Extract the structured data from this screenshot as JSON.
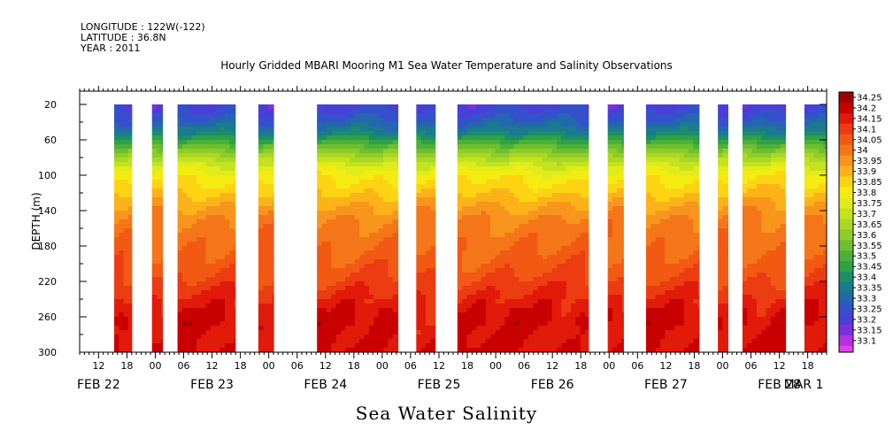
{
  "header": {
    "longitude": "LONGITUDE : 122W(-122)",
    "latitude": "LATITUDE : 36.8N",
    "year": "YEAR : 2011"
  },
  "chart_data": {
    "type": "heatmap",
    "title": "Hourly Gridded MBARI Mooring M1 Sea Water Temperature and Salinity Observations",
    "xlabel": "Sea Water Salinity",
    "ylabel": "DEPTH (m)",
    "x_units": "hours since 2011-02-22 00:00",
    "xlim": [
      8,
      166
    ],
    "ylim": [
      300,
      5
    ],
    "y_ticks": [
      20,
      60,
      100,
      140,
      180,
      220,
      260,
      300
    ],
    "x_hour_ticks": [
      {
        "h": 12,
        "label": "12"
      },
      {
        "h": 18,
        "label": "18"
      },
      {
        "h": 24,
        "label": "00"
      },
      {
        "h": 30,
        "label": "06"
      },
      {
        "h": 36,
        "label": "12"
      },
      {
        "h": 42,
        "label": "18"
      },
      {
        "h": 48,
        "label": "00"
      },
      {
        "h": 54,
        "label": "06"
      },
      {
        "h": 60,
        "label": "12"
      },
      {
        "h": 66,
        "label": "18"
      },
      {
        "h": 72,
        "label": "00"
      },
      {
        "h": 78,
        "label": "06"
      },
      {
        "h": 84,
        "label": "12"
      },
      {
        "h": 90,
        "label": "18"
      },
      {
        "h": 96,
        "label": "00"
      },
      {
        "h": 102,
        "label": "06"
      },
      {
        "h": 108,
        "label": "12"
      },
      {
        "h": 114,
        "label": "18"
      },
      {
        "h": 120,
        "label": "00"
      },
      {
        "h": 126,
        "label": "06"
      },
      {
        "h": 132,
        "label": "12"
      },
      {
        "h": 138,
        "label": "18"
      },
      {
        "h": 144,
        "label": "00"
      },
      {
        "h": 150,
        "label": "06"
      },
      {
        "h": 156,
        "label": "12"
      },
      {
        "h": 162,
        "label": "18"
      }
    ],
    "date_labels": [
      {
        "h": 12,
        "label": "FEB 22"
      },
      {
        "h": 36,
        "label": "FEB 23"
      },
      {
        "h": 60,
        "label": "FEB 24"
      },
      {
        "h": 84,
        "label": "FEB 25"
      },
      {
        "h": 108,
        "label": "FEB 26"
      },
      {
        "h": 132,
        "label": "FEB 27"
      },
      {
        "h": 156,
        "label": "FEB 28"
      },
      {
        "h": 172,
        "label": "MAR  1"
      }
    ],
    "data_segments": [
      {
        "start": 15.3,
        "end": 19.0
      },
      {
        "start": 23.3,
        "end": 25.5
      },
      {
        "start": 28.7,
        "end": 40.9
      },
      {
        "start": 45.8,
        "end": 49.0
      },
      {
        "start": 58.2,
        "end": 75.3
      },
      {
        "start": 79.2,
        "end": 83.2
      },
      {
        "start": 87.9,
        "end": 115.6
      },
      {
        "start": 119.7,
        "end": 123.0
      },
      {
        "start": 127.8,
        "end": 139.0
      },
      {
        "start": 143.0,
        "end": 145.1
      },
      {
        "start": 148.2,
        "end": 157.3
      },
      {
        "start": 161.3,
        "end": 168.5
      }
    ],
    "depth_profile": [
      {
        "depth": 20,
        "value": 33.22
      },
      {
        "depth": 40,
        "value": 33.3
      },
      {
        "depth": 55,
        "value": 33.42
      },
      {
        "depth": 70,
        "value": 33.58
      },
      {
        "depth": 85,
        "value": 33.72
      },
      {
        "depth": 100,
        "value": 33.83
      },
      {
        "depth": 115,
        "value": 33.88
      },
      {
        "depth": 130,
        "value": 33.94
      },
      {
        "depth": 150,
        "value": 34.01
      },
      {
        "depth": 170,
        "value": 34.04
      },
      {
        "depth": 190,
        "value": 34.06
      },
      {
        "depth": 210,
        "value": 34.09
      },
      {
        "depth": 230,
        "value": 34.13
      },
      {
        "depth": 250,
        "value": 34.18
      },
      {
        "depth": 265,
        "value": 34.2
      },
      {
        "depth": 280,
        "value": 34.19
      },
      {
        "depth": 300,
        "value": 34.21
      }
    ],
    "colorbar": {
      "levels": [
        "34.25",
        "34.2",
        "34.15",
        "34.1",
        "34.05",
        "34",
        "33.95",
        "33.9",
        "33.85",
        "33.8",
        "33.75",
        "33.7",
        "33.65",
        "33.6",
        "33.55",
        "33.5",
        "33.45",
        "33.4",
        "33.35",
        "33.3",
        "33.25",
        "33.2",
        "33.15",
        "33.1"
      ],
      "colors": [
        "#a00000",
        "#c80000",
        "#e21a0a",
        "#ec3c12",
        "#f25a14",
        "#f47618",
        "#f8951c",
        "#fbb319",
        "#fcd412",
        "#f4ec10",
        "#e0ec1a",
        "#c4e21e",
        "#a8d824",
        "#8ecc2a",
        "#6ebf2e",
        "#4cb03a",
        "#2fa146",
        "#1d8c6a",
        "#1a7a8e",
        "#2466b0",
        "#3550cc",
        "#4b3ed8",
        "#7a30dc",
        "#b630e4",
        "#e040f0"
      ]
    }
  }
}
